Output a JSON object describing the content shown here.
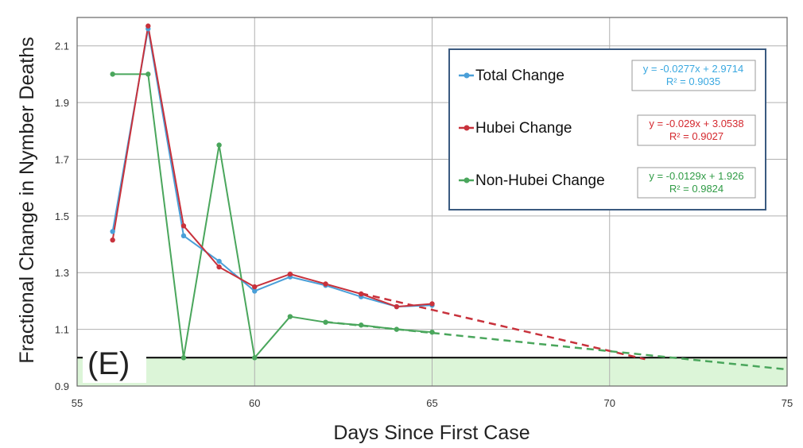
{
  "chart_data": {
    "type": "line",
    "panel_label": "(E)",
    "xlabel": "Days Since First Case",
    "ylabel": "Fractional Change in Nymber Deaths",
    "xlim": [
      55,
      75
    ],
    "ylim": [
      0.9,
      2.2
    ],
    "x_ticks": [
      55,
      60,
      65,
      70,
      75
    ],
    "y_ticks": [
      0.9,
      1.1,
      1.3,
      1.5,
      1.7,
      1.9,
      2.1
    ],
    "grid": true,
    "reference_line": {
      "y": 1.0,
      "shade_below": true,
      "shade_color": "#dcf5d8"
    },
    "legend_position": "top-right",
    "series": [
      {
        "name": "Total Change",
        "color": "#4a9fd8",
        "x": [
          56,
          57,
          58,
          59,
          60,
          61,
          62,
          63,
          64,
          65
        ],
        "y": [
          1.445,
          2.16,
          1.43,
          1.34,
          1.235,
          1.285,
          1.255,
          1.215,
          1.18,
          1.185
        ],
        "trendline": {
          "equation": "y = -0.0277x + 2.9714",
          "r2": "R² = 0.9035",
          "slope": -0.0277,
          "intercept": 2.9714
        }
      },
      {
        "name": "Hubei Change",
        "color": "#c8323c",
        "x": [
          56,
          57,
          58,
          59,
          60,
          61,
          62,
          63,
          64,
          65
        ],
        "y": [
          1.415,
          2.17,
          1.465,
          1.32,
          1.25,
          1.295,
          1.26,
          1.225,
          1.18,
          1.19
        ],
        "trendline": {
          "equation": "y = -0.029x + 3.0538",
          "r2": "R² = 0.9027",
          "slope": -0.029,
          "intercept": 3.0538,
          "x_from": 63,
          "x_to": 71
        }
      },
      {
        "name": "Non-Hubei Change",
        "color": "#4aa65c",
        "x": [
          56,
          57,
          58,
          59,
          60,
          61,
          62,
          63,
          64,
          65
        ],
        "y": [
          2.0,
          2.0,
          1.0,
          1.75,
          1.0,
          1.145,
          1.125,
          1.115,
          1.1,
          1.09
        ],
        "trendline": {
          "equation": "y = -0.0129x + 1.926",
          "r2": "R² = 0.9824",
          "slope": -0.0129,
          "intercept": 1.926,
          "x_from": 62,
          "x_to": 75
        }
      }
    ]
  }
}
